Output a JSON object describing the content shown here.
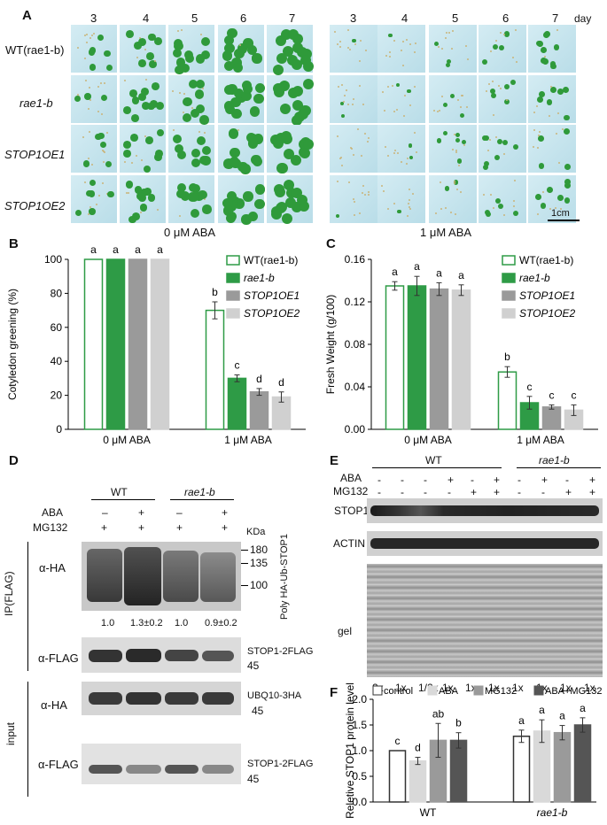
{
  "panelA": {
    "label": "A",
    "days": [
      "3",
      "4",
      "5",
      "6",
      "7"
    ],
    "days2": [
      "3",
      "4",
      "5",
      "6",
      "7"
    ],
    "day_unit": "day",
    "row_labels": [
      "WT(rae1-b)",
      "rae1-b",
      "STOP1OE1",
      "STOP1OE2"
    ],
    "cond_left": "0 μM ABA",
    "cond_right": "1 μM ABA",
    "scale": "1cm"
  },
  "chartB": {
    "label": "B",
    "chart_data": {
      "type": "bar",
      "ylabel": "Cotyledon greening (%)",
      "ylim": [
        0,
        100
      ],
      "yticks": [
        "0",
        "20",
        "40",
        "60",
        "80",
        "100"
      ],
      "categories": [
        "0 μM ABA",
        "1 μM ABA"
      ],
      "series": [
        {
          "name": "WT(rae1-b)",
          "values": [
            100,
            70
          ],
          "err": [
            0,
            5
          ],
          "letters": [
            "a",
            "b"
          ],
          "color": "#ffffff",
          "stroke": "#2e9b46"
        },
        {
          "name": "rae1-b",
          "values": [
            100,
            30
          ],
          "err": [
            0,
            2
          ],
          "letters": [
            "a",
            "c"
          ],
          "color": "#2e9b46",
          "stroke": "#2e9b46"
        },
        {
          "name": "STOP1OE1",
          "values": [
            100,
            22
          ],
          "err": [
            0,
            2
          ],
          "letters": [
            "a",
            "d"
          ],
          "color": "#9a9a9a",
          "stroke": "#9a9a9a"
        },
        {
          "name": "STOP1OE2",
          "values": [
            100,
            19
          ],
          "err": [
            0,
            3
          ],
          "letters": [
            "a",
            "d"
          ],
          "color": "#d0d0d0",
          "stroke": "#d0d0d0"
        }
      ],
      "legend": "top-right"
    }
  },
  "chartC": {
    "label": "C",
    "chart_data": {
      "type": "bar",
      "ylabel": "Fresh Weight (g/100)",
      "ylim": [
        0,
        0.16
      ],
      "yticks": [
        "0.00",
        "0.04",
        "0.08",
        "0.12",
        "0.16"
      ],
      "categories": [
        "0 μM ABA",
        "1 μM ABA"
      ],
      "series": [
        {
          "name": "WT(rae1-b)",
          "values": [
            0.135,
            0.054
          ],
          "err": [
            0.004,
            0.005
          ],
          "letters": [
            "a",
            "b"
          ],
          "color": "#ffffff",
          "stroke": "#2e9b46"
        },
        {
          "name": "rae1-b",
          "values": [
            0.135,
            0.025
          ],
          "err": [
            0.009,
            0.006
          ],
          "letters": [
            "a",
            "c"
          ],
          "color": "#2e9b46",
          "stroke": "#2e9b46"
        },
        {
          "name": "STOP1OE1",
          "values": [
            0.132,
            0.021
          ],
          "err": [
            0.006,
            0.002
          ],
          "letters": [
            "a",
            "c"
          ],
          "color": "#9a9a9a",
          "stroke": "#9a9a9a"
        },
        {
          "name": "STOP1OE2",
          "values": [
            0.131,
            0.018
          ],
          "err": [
            0.005,
            0.005
          ],
          "letters": [
            "a",
            "c"
          ],
          "color": "#d0d0d0",
          "stroke": "#d0d0d0"
        }
      ],
      "legend": "top-right"
    }
  },
  "panelD": {
    "label": "D",
    "group1": "WT",
    "group2": "rae1-b",
    "row_aba": "ABA",
    "row_mg": "MG132",
    "aba_signs": [
      "–",
      "+",
      "–",
      "+"
    ],
    "mg_signs": [
      "+",
      "+",
      "+",
      "+"
    ],
    "kda": "KDa",
    "mw_180": "180",
    "mw_135": "135",
    "mw_100": "100",
    "mw_45a": "45",
    "mw_45b": "45",
    "mw_45c": "45",
    "poly": "Poly HA-Ub-STOP1",
    "quant": [
      "1.0",
      "1.3±0.2",
      "1.0",
      "0.9±0.2"
    ],
    "ip": "IP(FLAG)",
    "input": "input",
    "a_ha": "α-HA",
    "a_flag": "α-FLAG",
    "a_ha2": "α-HA",
    "a_flag2": "α-FLAG",
    "stop1_flag": "STOP1-2FLAG",
    "ubq": "UBQ10-3HA",
    "stop1_flag2": "STOP1-2FLAG"
  },
  "panelE": {
    "label": "E",
    "group1": "WT",
    "group2": "rae1-b",
    "row_aba": "ABA",
    "row_mg": "MG132",
    "aba_signs": [
      "-",
      "-",
      "-",
      "+",
      "-",
      "+",
      "-",
      "+",
      "-",
      "+"
    ],
    "mg_signs": [
      "-",
      "-",
      "-",
      "-",
      "+",
      "+",
      "-",
      "-",
      "+",
      "+"
    ],
    "stop1": "STOP1",
    "actin": "ACTIN",
    "gel": "gel",
    "loading": [
      "2x",
      "1x",
      "1/2x",
      "1x",
      "1x",
      "1x",
      "1x",
      "1x",
      "1x",
      "1x"
    ]
  },
  "chartF": {
    "label": "F",
    "chart_data": {
      "type": "bar",
      "ylabel": "Reletive STOP1 protein level",
      "ylim": [
        0,
        2.0
      ],
      "yticks": [
        "0.0",
        "0.5",
        "1.0",
        "1.5",
        "2.0"
      ],
      "categories": [
        "WT",
        "rae1-b"
      ],
      "series": [
        {
          "name": "control",
          "values": [
            1.0,
            1.28
          ],
          "err": [
            0,
            0.12
          ],
          "letters": [
            "c",
            "a"
          ],
          "color": "#ffffff",
          "stroke": "#333333"
        },
        {
          "name": "ABA",
          "values": [
            0.8,
            1.38
          ],
          "err": [
            0.07,
            0.22
          ],
          "letters": [
            "d",
            "a"
          ],
          "color": "#d9d9d9",
          "stroke": "#d9d9d9"
        },
        {
          "name": "MG132",
          "values": [
            1.2,
            1.35
          ],
          "err": [
            0.33,
            0.14
          ],
          "letters": [
            "ab",
            "a"
          ],
          "color": "#9a9a9a",
          "stroke": "#9a9a9a"
        },
        {
          "name": "ABA+MG132",
          "values": [
            1.2,
            1.5
          ],
          "err": [
            0.15,
            0.14
          ],
          "letters": [
            "b",
            "a"
          ],
          "color": "#555555",
          "stroke": "#555555"
        }
      ],
      "legend": "top"
    }
  }
}
